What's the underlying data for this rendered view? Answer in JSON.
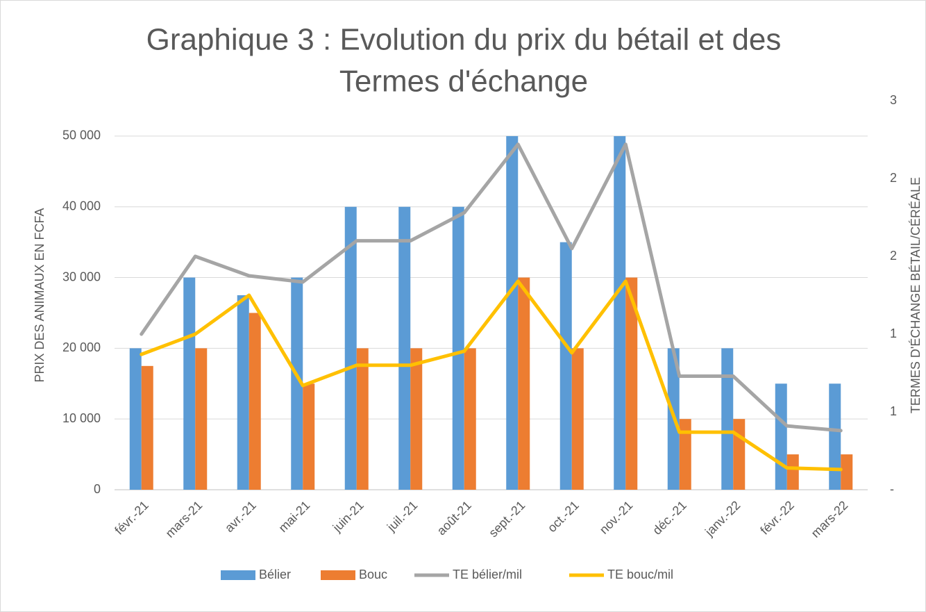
{
  "chart_data": {
    "type": "bar-line",
    "title": [
      "Graphique 3 : Evolution du prix du bétail et des",
      "Termes d'échange"
    ],
    "ylabel": "PRIX DES ANIMAUX EN FCFA",
    "y2label": "TERMES D'ÉCHANGE BÉTAIL/CÉRÉALE",
    "categories": [
      "févr.-21",
      "mars-21",
      "avr.-21",
      "mai-21",
      "juin-21",
      "juil.-21",
      "août-21",
      "sept.-21",
      "oct.-21",
      "nov.-21",
      "déc.-21",
      "janv.-22",
      "févr.-22",
      "mars-22"
    ],
    "series": [
      {
        "name": "Bélier",
        "type": "bar",
        "color": "#5b9bd5",
        "values": [
          20000,
          30000,
          27500,
          30000,
          40000,
          40000,
          40000,
          50000,
          35000,
          50000,
          20000,
          20000,
          15000,
          15000
        ]
      },
      {
        "name": "Bouc",
        "type": "bar",
        "color": "#ed7d31",
        "values": [
          17500,
          20000,
          25000,
          15000,
          20000,
          20000,
          20000,
          30000,
          20000,
          30000,
          10000,
          10000,
          5000,
          5000
        ]
      },
      {
        "name": "TE bélier/mil",
        "type": "line",
        "axis": "y2",
        "color": "#a5a5a5",
        "values": [
          1.0,
          1.5,
          1.375,
          1.335,
          1.6,
          1.6,
          1.78,
          2.22,
          1.55,
          2.22,
          0.73,
          0.73,
          0.41,
          0.38
        ]
      },
      {
        "name": "TE bouc/mil",
        "type": "line",
        "axis": "y2",
        "color": "#ffc000",
        "values": [
          0.87,
          1.0,
          1.25,
          0.67,
          0.8,
          0.8,
          0.89,
          1.34,
          0.88,
          1.34,
          0.37,
          0.37,
          0.14,
          0.13
        ]
      }
    ],
    "ylim": [
      0,
      55000
    ],
    "yticks": [
      {
        "value": 0,
        "label": "0"
      },
      {
        "value": 10000,
        "label": "10 000"
      },
      {
        "value": 20000,
        "label": "20 000"
      },
      {
        "value": 30000,
        "label": "30 000"
      },
      {
        "value": 40000,
        "label": "40 000"
      },
      {
        "value": 50000,
        "label": "50 000"
      }
    ],
    "y2lim": [
      0,
      2.5
    ],
    "y2ticks": [
      {
        "value": 0,
        "label": "-"
      },
      {
        "value": 0.5,
        "label": "1"
      },
      {
        "value": 1,
        "label": "1"
      },
      {
        "value": 1.5,
        "label": "2"
      },
      {
        "value": 2,
        "label": "2"
      },
      {
        "value": 2.5,
        "label": "3"
      }
    ],
    "grid": true,
    "legend": "bottom"
  }
}
